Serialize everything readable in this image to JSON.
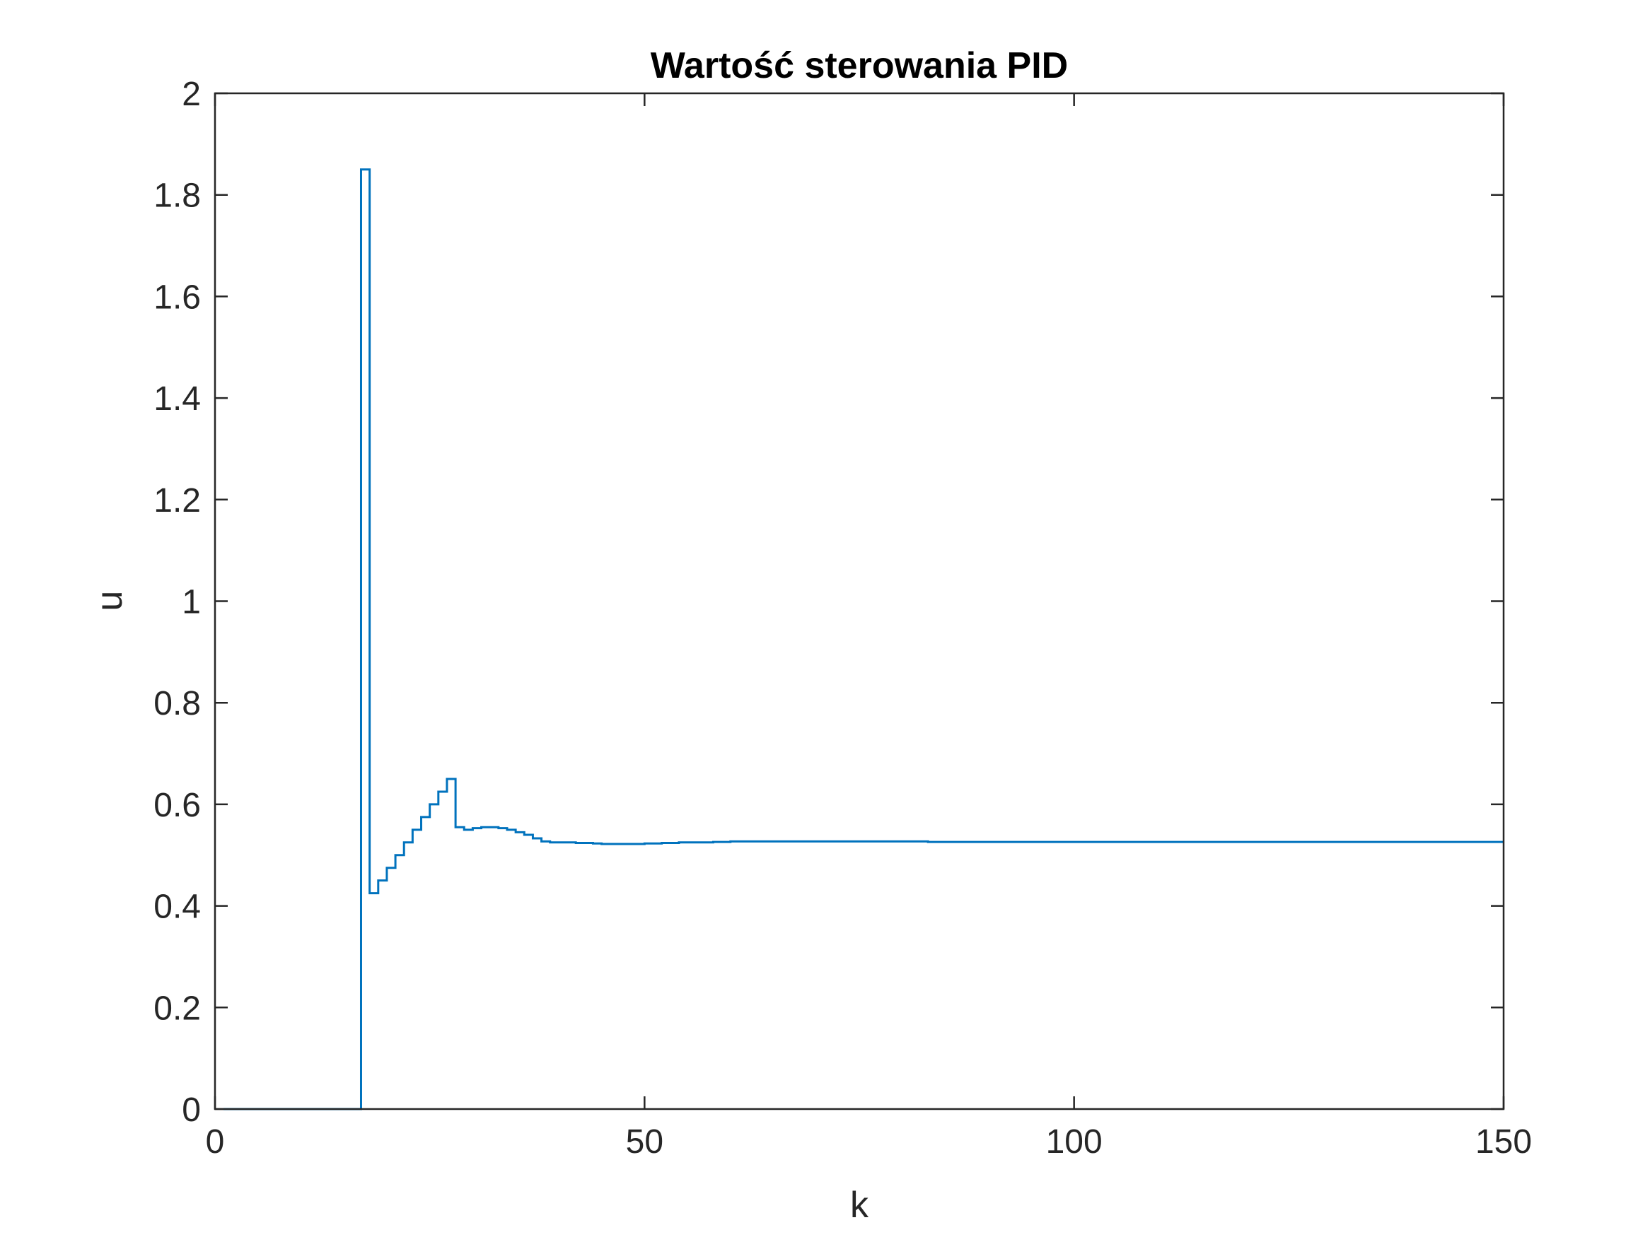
{
  "chart_data": {
    "type": "line",
    "title": "Wartość sterowania PID",
    "xlabel": "k",
    "ylabel": "u",
    "xlim": [
      0,
      150
    ],
    "ylim": [
      0,
      2
    ],
    "xticks": [
      0,
      50,
      100,
      150
    ],
    "xtick_labels": [
      "0",
      "50",
      "100",
      "150"
    ],
    "yticks": [
      0,
      0.2,
      0.4,
      0.6,
      0.8,
      1,
      1.2,
      1.4,
      1.6,
      1.8,
      2
    ],
    "ytick_labels": [
      "0",
      "0.2",
      "0.4",
      "0.6",
      "0.8",
      "1",
      "1.2",
      "1.4",
      "1.6",
      "1.8",
      "2"
    ],
    "grid": false,
    "line_color": "#0072BD",
    "series": [
      {
        "step": true,
        "x": [
          1,
          2,
          3,
          4,
          5,
          6,
          7,
          8,
          9,
          10,
          11,
          12,
          13,
          14,
          15,
          16,
          17,
          18,
          19,
          20,
          21,
          22,
          23,
          24,
          25,
          26,
          27,
          28,
          29,
          30,
          31,
          32,
          33,
          34,
          35,
          36,
          37,
          38,
          39,
          40,
          41,
          42,
          43,
          44,
          45,
          46,
          47,
          48,
          49,
          50,
          52,
          54,
          56,
          58,
          60,
          65,
          70,
          75,
          80,
          82,
          83,
          90,
          100,
          110,
          120,
          130,
          140,
          150
        ],
        "y": [
          0,
          0,
          0,
          0,
          0,
          0,
          0,
          0,
          0,
          0,
          0,
          0,
          0,
          0,
          0,
          0,
          1.85,
          0.425,
          0.45,
          0.475,
          0.5,
          0.525,
          0.55,
          0.575,
          0.6,
          0.625,
          0.65,
          0.555,
          0.55,
          0.553,
          0.555,
          0.555,
          0.553,
          0.55,
          0.545,
          0.54,
          0.533,
          0.527,
          0.525,
          0.525,
          0.525,
          0.524,
          0.524,
          0.523,
          0.522,
          0.522,
          0.522,
          0.522,
          0.522,
          0.523,
          0.524,
          0.525,
          0.525,
          0.526,
          0.527,
          0.527,
          0.527,
          0.527,
          0.527,
          0.527,
          0.526,
          0.526,
          0.526,
          0.526,
          0.526,
          0.526,
          0.526,
          0.526
        ]
      }
    ]
  }
}
